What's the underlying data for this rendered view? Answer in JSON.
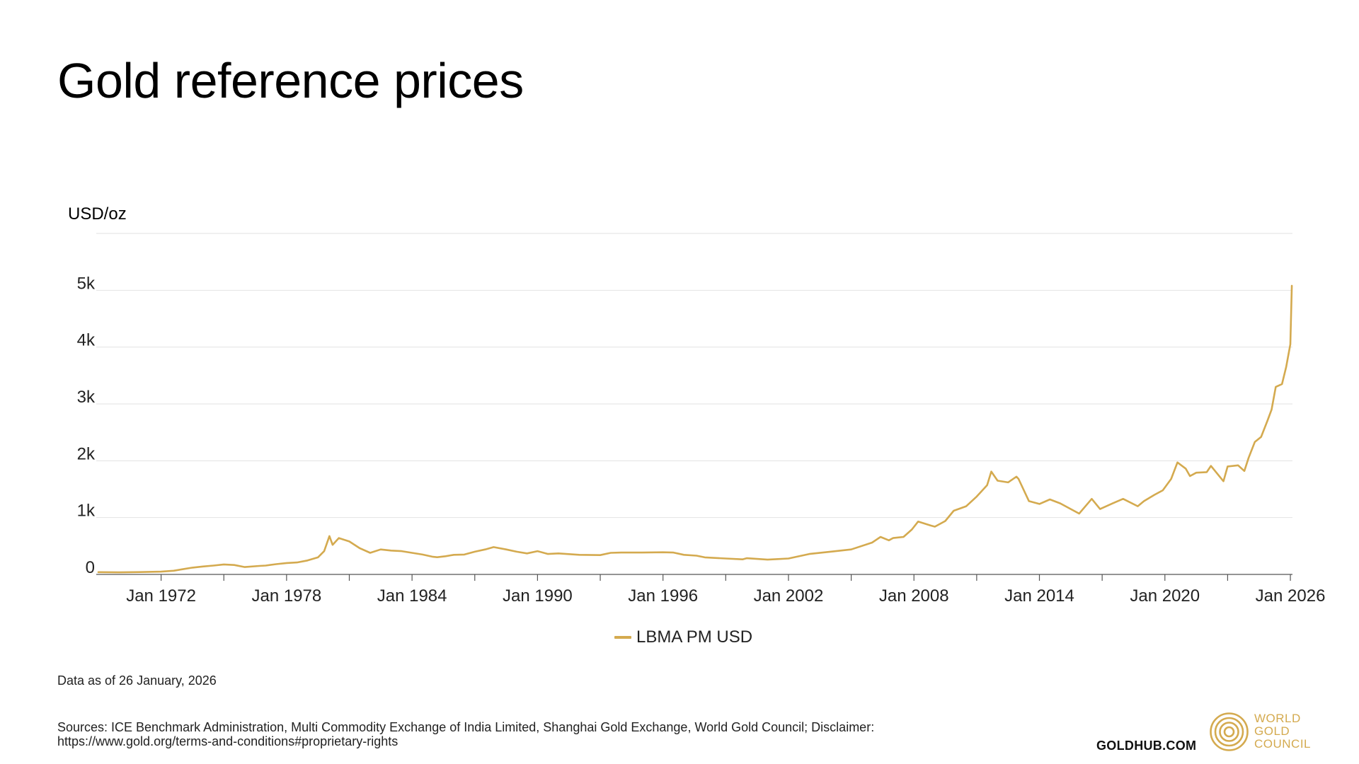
{
  "title": "Gold reference prices",
  "footer": {
    "as_of": "Data as of 26 January, 2026",
    "sources_line1": "Sources: ICE Benchmark Administration, Multi Commodity Exchange of India Limited, Shanghai Gold Exchange, World Gold Council; Disclaimer:",
    "sources_line2": "https://www.gold.org/terms-and-conditions#proprietary-rights",
    "site": "GOLDHUB.COM",
    "logo_line1": "WORLD",
    "logo_line2": "GOLD",
    "logo_line3": "COUNCIL"
  },
  "colors": {
    "series": "#d4aa4f",
    "grid": "#e2e2e2",
    "axis": "#555555"
  },
  "chart_data": {
    "type": "line",
    "title": "Gold reference prices",
    "ylabel": "USD/oz",
    "xlabel": "",
    "ylim": [
      0,
      6000
    ],
    "yticks": [
      0,
      1000,
      2000,
      3000,
      4000,
      5000
    ],
    "ytick_labels": [
      "0",
      "1k",
      "2k",
      "3k",
      "4k",
      "5k"
    ],
    "xlim": [
      1968.9,
      2026.1
    ],
    "xticks": [
      1972,
      1978,
      1984,
      1990,
      1996,
      2002,
      2008,
      2014,
      2020,
      2026
    ],
    "xtick_labels": [
      "Jan 1972",
      "Jan 1978",
      "Jan 1984",
      "Jan 1990",
      "Jan 1996",
      "Jan 2002",
      "Jan 2008",
      "Jan 2014",
      "Jan 2020",
      "Jan 2026"
    ],
    "minor_xticks": [
      1975,
      1981,
      1987,
      1993,
      1999,
      2005,
      2011,
      2017,
      2023
    ],
    "legend": "bottom-center",
    "grid": true,
    "series": [
      {
        "name": "LBMA PM USD",
        "x": [
          1969.0,
          1970.0,
          1971.0,
          1972.0,
          1972.6,
          1973.0,
          1973.5,
          1974.0,
          1974.5,
          1975.0,
          1975.5,
          1976.0,
          1976.7,
          1977.0,
          1977.5,
          1978.0,
          1978.5,
          1979.0,
          1979.5,
          1979.8,
          1980.05,
          1980.2,
          1980.5,
          1981.0,
          1981.5,
          1982.0,
          1982.5,
          1983.0,
          1983.5,
          1984.0,
          1984.5,
          1985.0,
          1985.2,
          1985.6,
          1986.0,
          1986.5,
          1987.0,
          1987.5,
          1987.9,
          1988.5,
          1989.0,
          1989.5,
          1990.0,
          1990.5,
          1991.0,
          1992.0,
          1993.0,
          1993.5,
          1994.0,
          1995.0,
          1996.0,
          1996.5,
          1997.0,
          1997.6,
          1998.0,
          1999.0,
          1999.8,
          2000.0,
          2001.0,
          2001.5,
          2002.0,
          2003.0,
          2004.0,
          2005.0,
          2006.0,
          2006.4,
          2006.8,
          2007.0,
          2007.5,
          2007.9,
          2008.2,
          2008.8,
          2009.0,
          2009.5,
          2009.9,
          2010.5,
          2011.0,
          2011.5,
          2011.7,
          2012.0,
          2012.5,
          2012.9,
          2013.0,
          2013.5,
          2014.0,
          2014.5,
          2015.0,
          2015.5,
          2015.9,
          2016.5,
          2016.9,
          2017.5,
          2018.0,
          2018.7,
          2019.0,
          2019.5,
          2019.9,
          2020.3,
          2020.6,
          2021.0,
          2021.2,
          2021.5,
          2022.0,
          2022.2,
          2022.8,
          2023.0,
          2023.5,
          2023.8,
          2024.0,
          2024.3,
          2024.6,
          2024.9,
          2025.1,
          2025.3,
          2025.6,
          2025.8,
          2026.0,
          2026.07
        ],
        "values": [
          40,
          36,
          41,
          49,
          65,
          90,
          120,
          140,
          155,
          175,
          165,
          130,
          150,
          155,
          180,
          200,
          210,
          245,
          300,
          410,
          675,
          520,
          640,
          580,
          460,
          380,
          440,
          420,
          410,
          380,
          350,
          310,
          302,
          320,
          345,
          350,
          400,
          440,
          480,
          440,
          400,
          370,
          410,
          360,
          370,
          345,
          340,
          380,
          385,
          385,
          390,
          385,
          345,
          330,
          300,
          280,
          265,
          285,
          260,
          270,
          280,
          360,
          400,
          440,
          560,
          660,
          600,
          640,
          660,
          790,
          930,
          860,
          840,
          940,
          1120,
          1200,
          1370,
          1570,
          1810,
          1650,
          1620,
          1720,
          1680,
          1290,
          1240,
          1320,
          1250,
          1150,
          1070,
          1330,
          1150,
          1250,
          1330,
          1200,
          1290,
          1400,
          1480,
          1680,
          1970,
          1860,
          1730,
          1790,
          1800,
          1910,
          1640,
          1900,
          1920,
          1820,
          2050,
          2330,
          2420,
          2700,
          2900,
          3300,
          3350,
          3650,
          4050,
          5080
        ]
      }
    ]
  }
}
